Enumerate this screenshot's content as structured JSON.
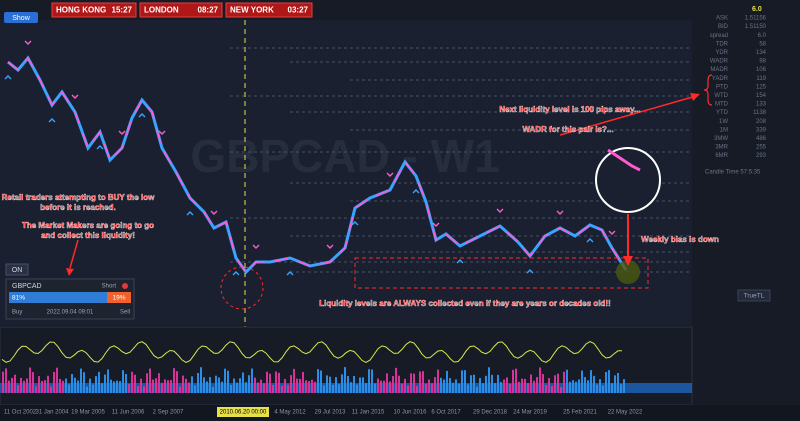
{
  "top_bar": {
    "clocks": [
      {
        "city": "HONG KONG",
        "time": "15:27"
      },
      {
        "city": "LONDON",
        "time": "08:27"
      },
      {
        "city": "NEW YORK",
        "time": "03:27"
      }
    ],
    "show_button": "Show"
  },
  "chart": {
    "watermark": "GBPCAD - W1",
    "annotations": {
      "next_level": "Next liquidity level is 100 pips away...",
      "wadr": "WADR for this pair is?...",
      "retail_1": "Retail traders attempting to BUY the low",
      "retail_2": "before it is reached.",
      "makers_1": "The Market Makers are going to go",
      "makers_2": "and collect this liquidity!",
      "weekly_bias": "Weekly bias is down",
      "liquidity": "Liquidity levels are ALWAYS collected even if they are years or decades old!!"
    },
    "date_axis": [
      "11 Oct 2002",
      "31 Jan 2004",
      "19 Mar 2005",
      "11 Jun 2006",
      "2 Sep 2007",
      "4 May 2012",
      "29 Jul 2013",
      "11 Jan 2015",
      "10 Jun 2016",
      "6 Oct 2017",
      "29 Dec 2018",
      "24 Mar 2019",
      "25 Feb 2021",
      "22 May 2022"
    ],
    "highlighted_date": "2010.06.20 00:00"
  },
  "side_panel": {
    "top_value": "6.0",
    "rows": [
      {
        "label": "ASK",
        "value": "1.51156"
      },
      {
        "label": "BID",
        "value": "1.51150"
      },
      {
        "label": "spread",
        "value": "6.0"
      },
      {
        "label": "TDR",
        "value": "58"
      },
      {
        "label": "YDR",
        "value": "134"
      },
      {
        "label": "WADR",
        "value": "98"
      },
      {
        "label": "MADR",
        "value": "106"
      },
      {
        "label": "YADR",
        "value": "119"
      },
      {
        "label": "PTD",
        "value": "125"
      },
      {
        "label": "WTD",
        "value": "154"
      },
      {
        "label": "MTD",
        "value": "133"
      },
      {
        "label": "YTD",
        "value": "1138"
      },
      {
        "label": "1W",
        "value": "208"
      },
      {
        "label": "1M",
        "value": "339"
      },
      {
        "label": "3MW",
        "value": "486"
      },
      {
        "label": "3MR",
        "value": "255"
      },
      {
        "label": "6MR",
        "value": "293"
      }
    ],
    "candle_time": "Candle Time 57:5:35",
    "true_tl": "TrueTL"
  },
  "widget": {
    "on": "ON",
    "symbol": "GBPCAD",
    "direction": "Short",
    "buy_pct": "81%",
    "sell_pct": "19%",
    "buy": "Buy",
    "date": "2022.09.04 09:01",
    "sell": "Sell"
  }
}
